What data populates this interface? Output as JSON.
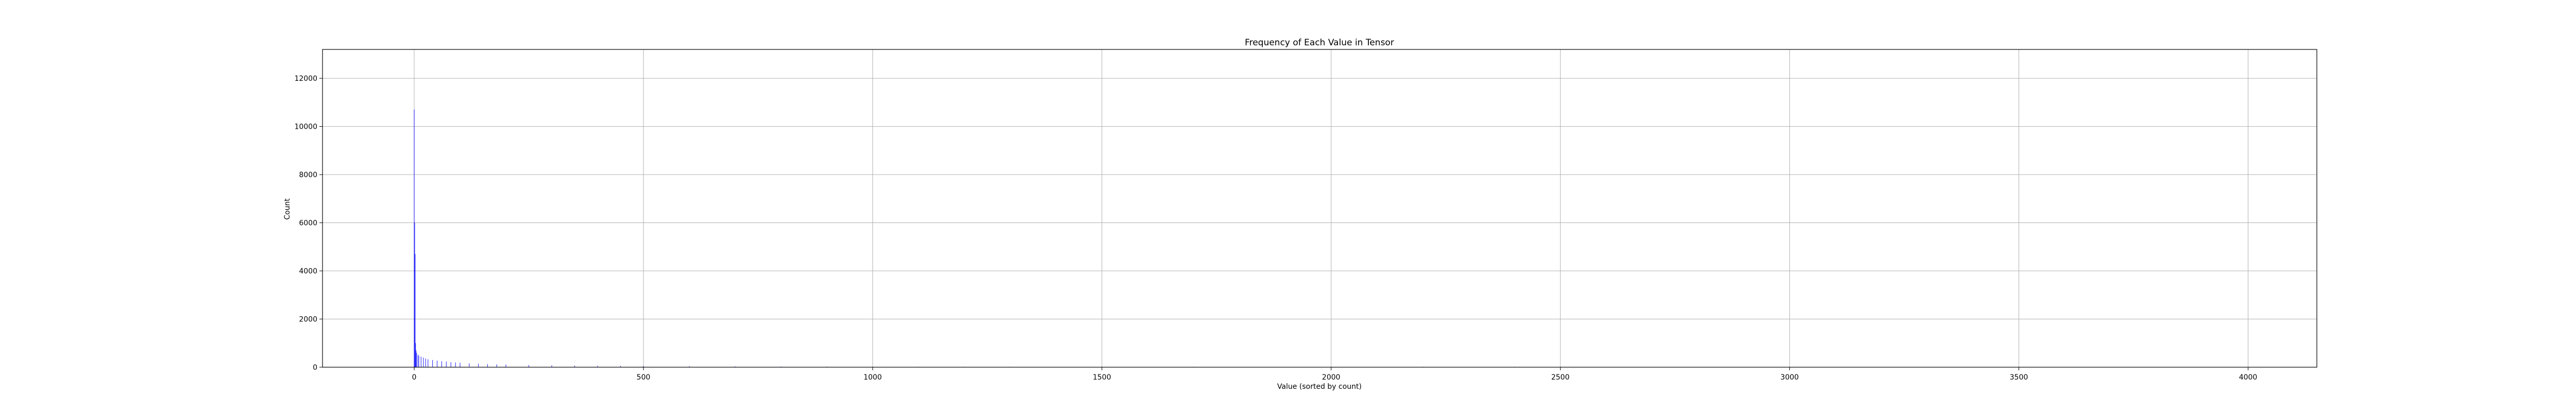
{
  "chart_data": {
    "type": "bar",
    "title": "Frequency of Each Value in Tensor",
    "xlabel": "Value (sorted by count)",
    "ylabel": "Count",
    "xlim": [
      -200,
      4150
    ],
    "ylim": [
      0,
      13200
    ],
    "xticks": [
      0,
      500,
      1000,
      1500,
      2000,
      2500,
      3000,
      3500,
      4000
    ],
    "yticks": [
      0,
      2000,
      4000,
      6000,
      8000,
      10000,
      12000
    ],
    "grid": true,
    "bar_color": "#0000ff",
    "series": [
      {
        "x": [
          0,
          1,
          2,
          3,
          4,
          5,
          8,
          10,
          15,
          20,
          25,
          30,
          40,
          50,
          60,
          70,
          80,
          90,
          100,
          120,
          140,
          160,
          180,
          200,
          250,
          300,
          350,
          400,
          450,
          500,
          600,
          700,
          800,
          900,
          1000,
          1100,
          1200,
          1300,
          1500,
          1700,
          2000,
          2200,
          2400,
          2500
        ],
        "values": [
          10700,
          6000,
          4700,
          1000,
          700,
          600,
          520,
          480,
          440,
          400,
          360,
          330,
          300,
          270,
          250,
          230,
          210,
          195,
          180,
          160,
          145,
          130,
          118,
          108,
          90,
          78,
          68,
          60,
          54,
          48,
          40,
          34,
          28,
          23,
          18,
          14,
          11,
          9,
          6,
          4,
          3,
          2,
          2,
          1
        ]
      }
    ]
  }
}
